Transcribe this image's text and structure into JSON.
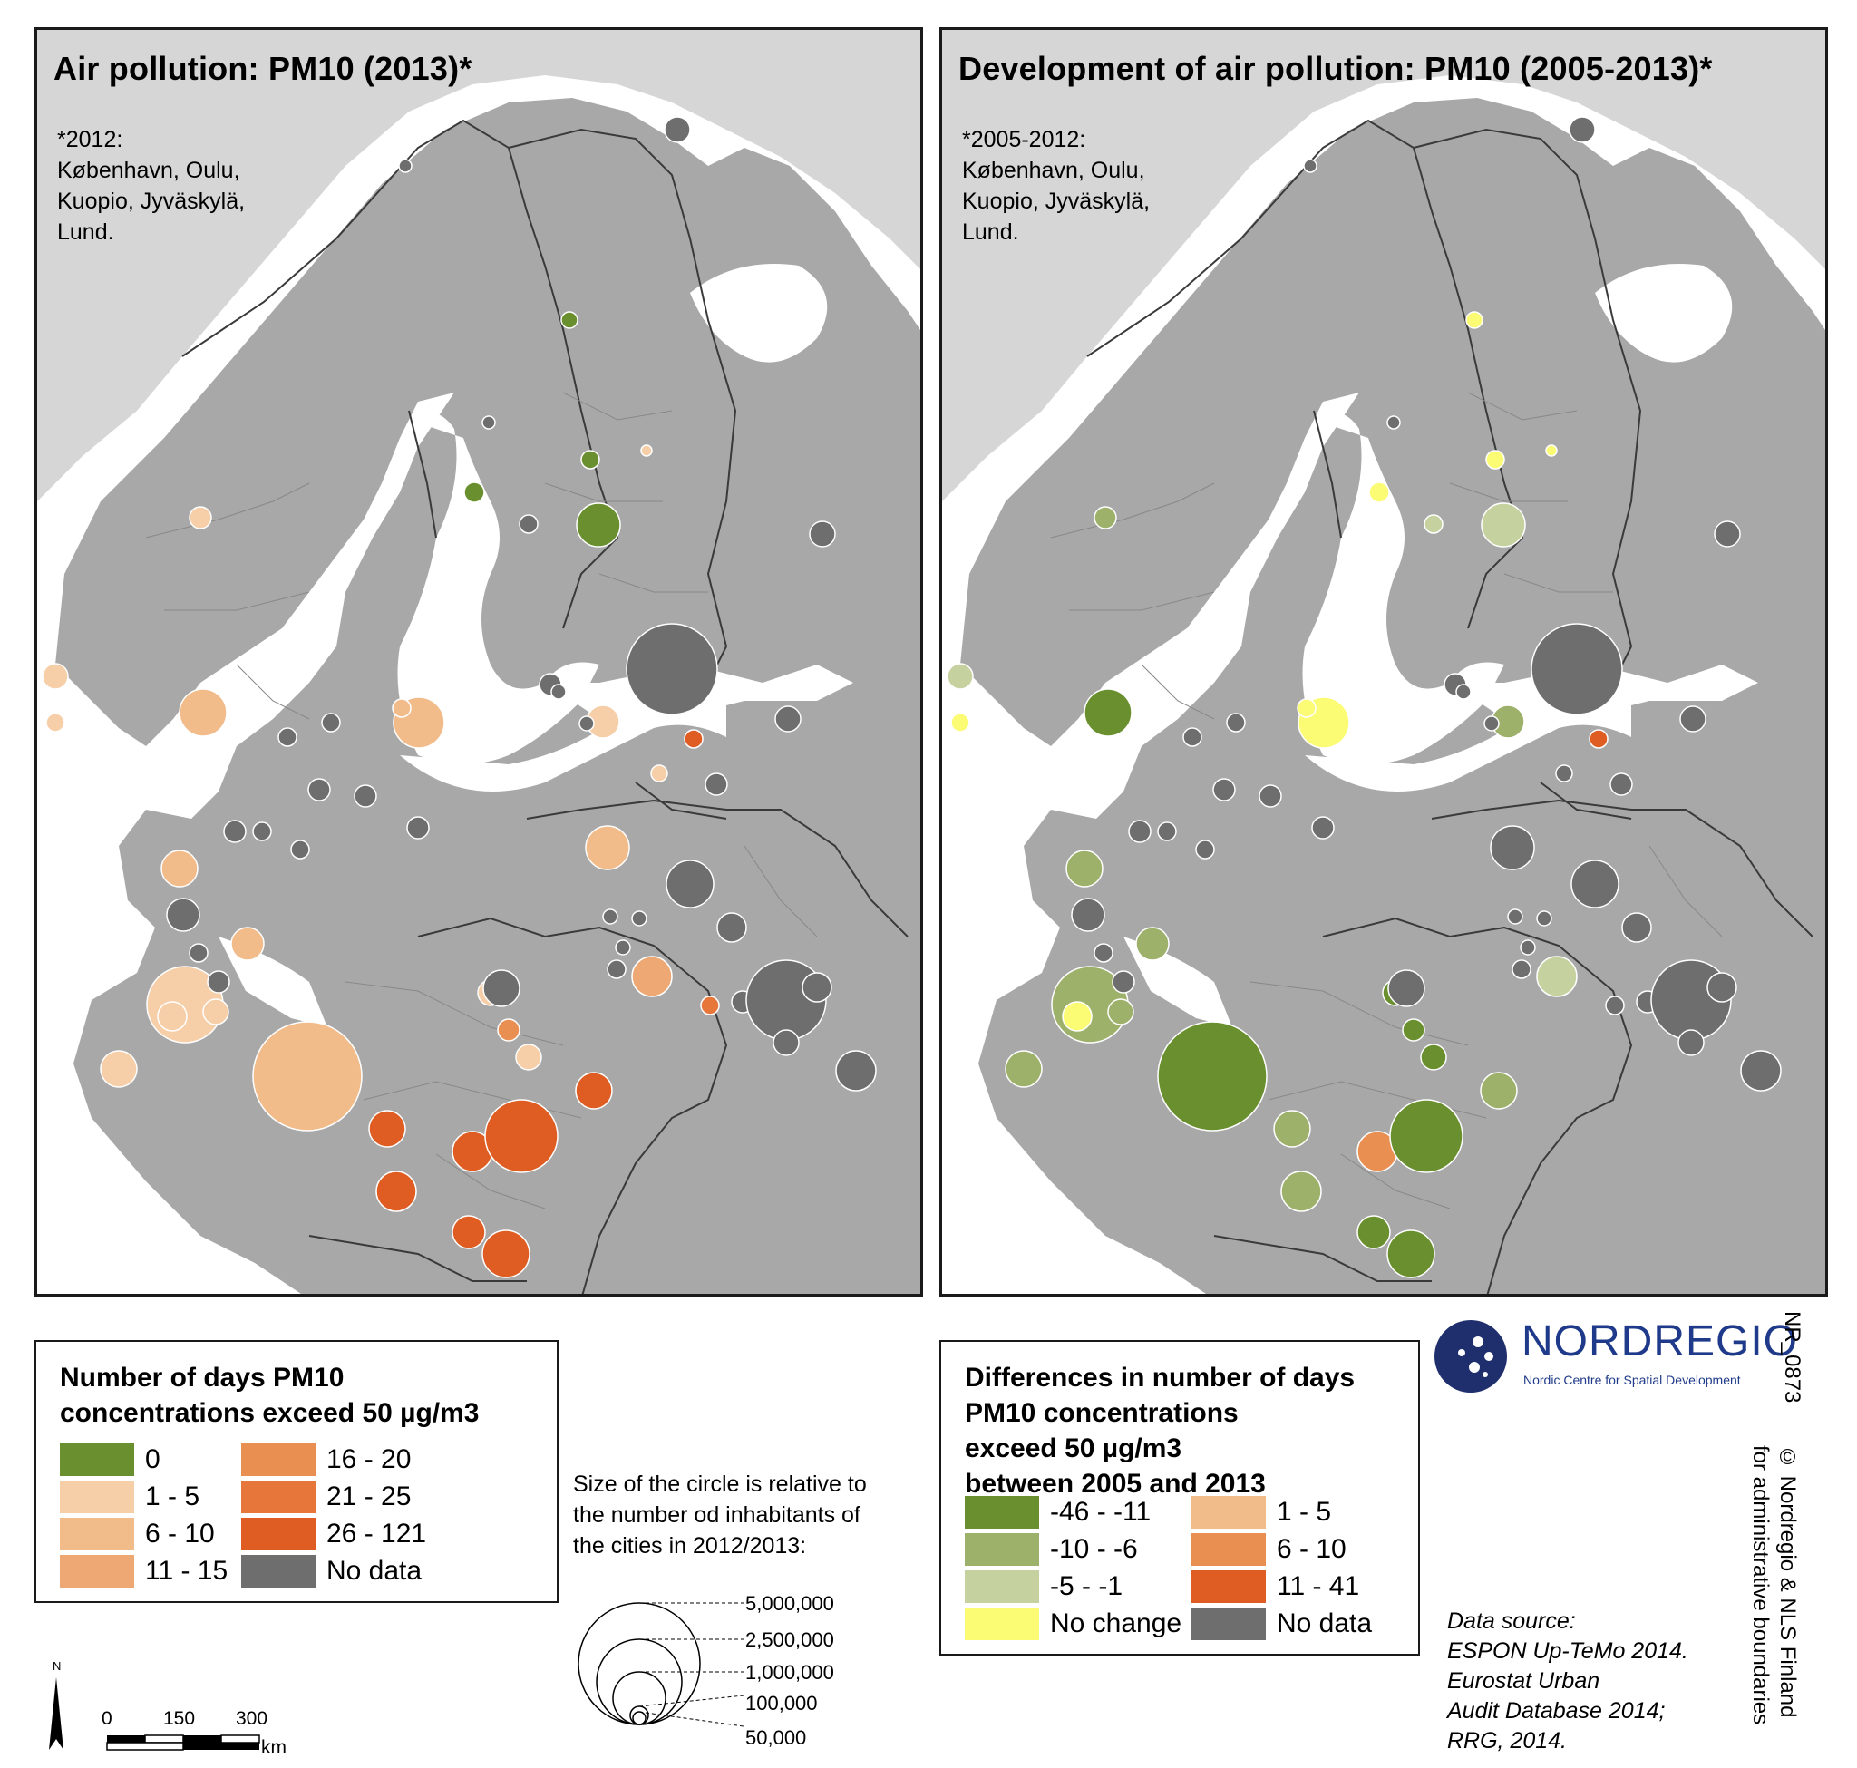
{
  "left_map": {
    "title": "Air pollution: PM10 (2013)*",
    "note": [
      "*2012:",
      "København, Oulu,",
      "Kuopio, Jyväskylä,",
      "Lund."
    ]
  },
  "right_map": {
    "title": "Development of air pollution: PM10 (2005-2013)*",
    "note": [
      "*2005-2012:",
      "København, Oulu,",
      "Kuopio, Jyväskylä,",
      "Lund."
    ]
  },
  "legend_left": {
    "title": [
      "Number of days PM10",
      "concentrations exceed 50 µg/m3"
    ],
    "items": [
      {
        "label": "0",
        "color": "#6a8f2f"
      },
      {
        "label": "1 - 5",
        "color": "#f6cfa9"
      },
      {
        "label": "6 - 10",
        "color": "#f2bb8a"
      },
      {
        "label": "11 - 15",
        "color": "#eea873"
      },
      {
        "label": "16 - 20",
        "color": "#ea8f52"
      },
      {
        "label": "21 - 25",
        "color": "#e6763a"
      },
      {
        "label": "26 - 121",
        "color": "#df5d22"
      },
      {
        "label": "No data",
        "color": "#6e6e6e"
      }
    ]
  },
  "legend_right": {
    "title": [
      "Differences in number of days",
      "PM10 concentrations",
      "exceed 50 µg/m3",
      "between 2005 and 2013"
    ],
    "items": [
      {
        "label": "-46 - -11",
        "color": "#6a8f2f"
      },
      {
        "label": "-10 - -6",
        "color": "#9db16a"
      },
      {
        "label": "-5 - -1",
        "color": "#c5d19f"
      },
      {
        "label": "No change",
        "color": "#fbfb74"
      },
      {
        "label": "1 - 5",
        "color": "#f2bb8a"
      },
      {
        "label": "6 - 10",
        "color": "#ea8f52"
      },
      {
        "label": "11 - 41",
        "color": "#df5d22"
      },
      {
        "label": "No data",
        "color": "#6e6e6e"
      }
    ]
  },
  "size_legend": {
    "text": [
      "Size of the circle is relative to",
      "the number od inhabitants of",
      "the cities in 2012/2013:"
    ],
    "values": [
      "5,000,000",
      "2,500,000",
      "1,000,000",
      "100,000",
      "50,000"
    ]
  },
  "scale": {
    "labels": [
      "0",
      "150",
      "300"
    ],
    "unit": "km",
    "north": "N"
  },
  "logo": {
    "name": "NORDREGIO",
    "subtitle": "Nordic Centre for Spatial Development"
  },
  "map_code": "NR_0873",
  "copyright": [
    "© Nordregio & NLS Finland",
    "for administrative boundaries"
  ],
  "data_source": [
    "Data source:",
    "ESPON Up-TeMo 2014.",
    "Eurostat Urban",
    "Audit Database 2014;",
    "RRG, 2014."
  ],
  "colors": {
    "land": "#a8a8a8",
    "outside_land": "#d6d6d6",
    "sea": "#ffffff",
    "border": "#3a3a3a"
  }
}
